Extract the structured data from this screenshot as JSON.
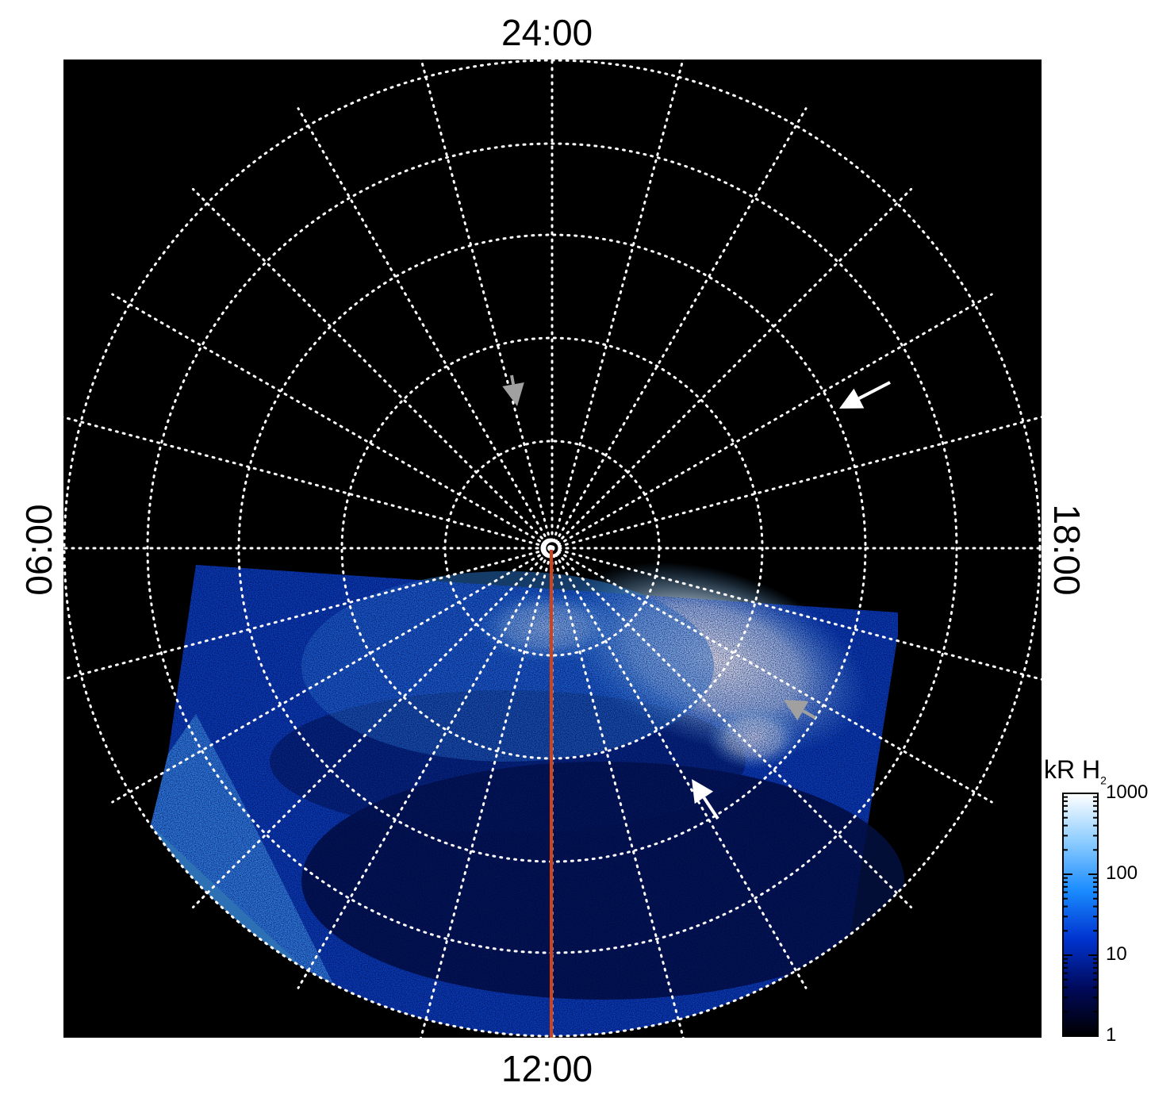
{
  "chart_data": {
    "type": "heatmap",
    "projection": "polar",
    "local_time_labels": {
      "top": "24:00",
      "bottom": "12:00",
      "left": "06:00",
      "right": "18:00"
    },
    "grid": true,
    "grid_style": "dotted",
    "colorbar": {
      "title_main": "kR H",
      "title_sub": "2",
      "scale": "log",
      "range": [
        1,
        1000
      ],
      "ticks": [
        {
          "value": 1,
          "label": "1"
        },
        {
          "value": 10,
          "label": "10"
        },
        {
          "value": 100,
          "label": "100"
        },
        {
          "value": 1000,
          "label": "1000"
        }
      ],
      "colors": [
        "#000000",
        "#000a5c",
        "#0033d0",
        "#1a8cff",
        "#8cccff",
        "#ffffff"
      ],
      "placement": "bottom-right"
    },
    "annotations": {
      "noon_midnight_line_color": "#d0421a",
      "arrow_colors": {
        "white": "#ffffff",
        "gray": "#a0a0a0"
      }
    }
  }
}
